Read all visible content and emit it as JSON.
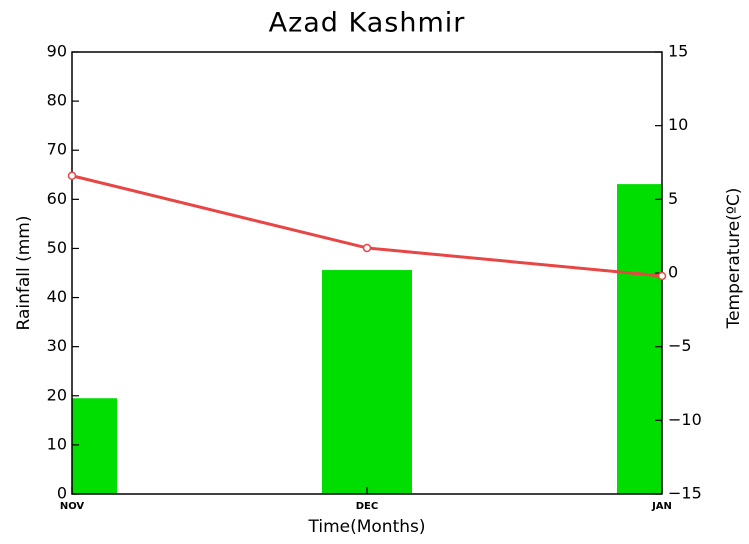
{
  "chart_data": {
    "type": "bar",
    "title": "Azad Kashmir",
    "xlabel": "Time(Months)",
    "ylabel": "Rainfall (mm)",
    "y2label": "Temperature(ºC)",
    "categories": [
      "NOV",
      "DEC",
      "JAN"
    ],
    "series": [
      {
        "color": "#00dd00",
        "values": [
          19.5,
          45.6,
          63.1
        ]
      },
      {
        "type": "line",
        "axis": "y2",
        "color": "#e84545",
        "values": [
          6.6,
          1.7,
          -0.2
        ]
      }
    ],
    "ylim": [
      0,
      90
    ],
    "yticks": [
      0,
      10,
      20,
      30,
      40,
      50,
      60,
      70,
      80,
      90
    ],
    "y2lim": [
      -15,
      15
    ],
    "y2ticks": [
      {
        "value": -15,
        "label": "−15"
      },
      {
        "value": -10,
        "label": "−10"
      },
      {
        "value": -5,
        "label": "−5"
      },
      0,
      5,
      10,
      15
    ]
  }
}
